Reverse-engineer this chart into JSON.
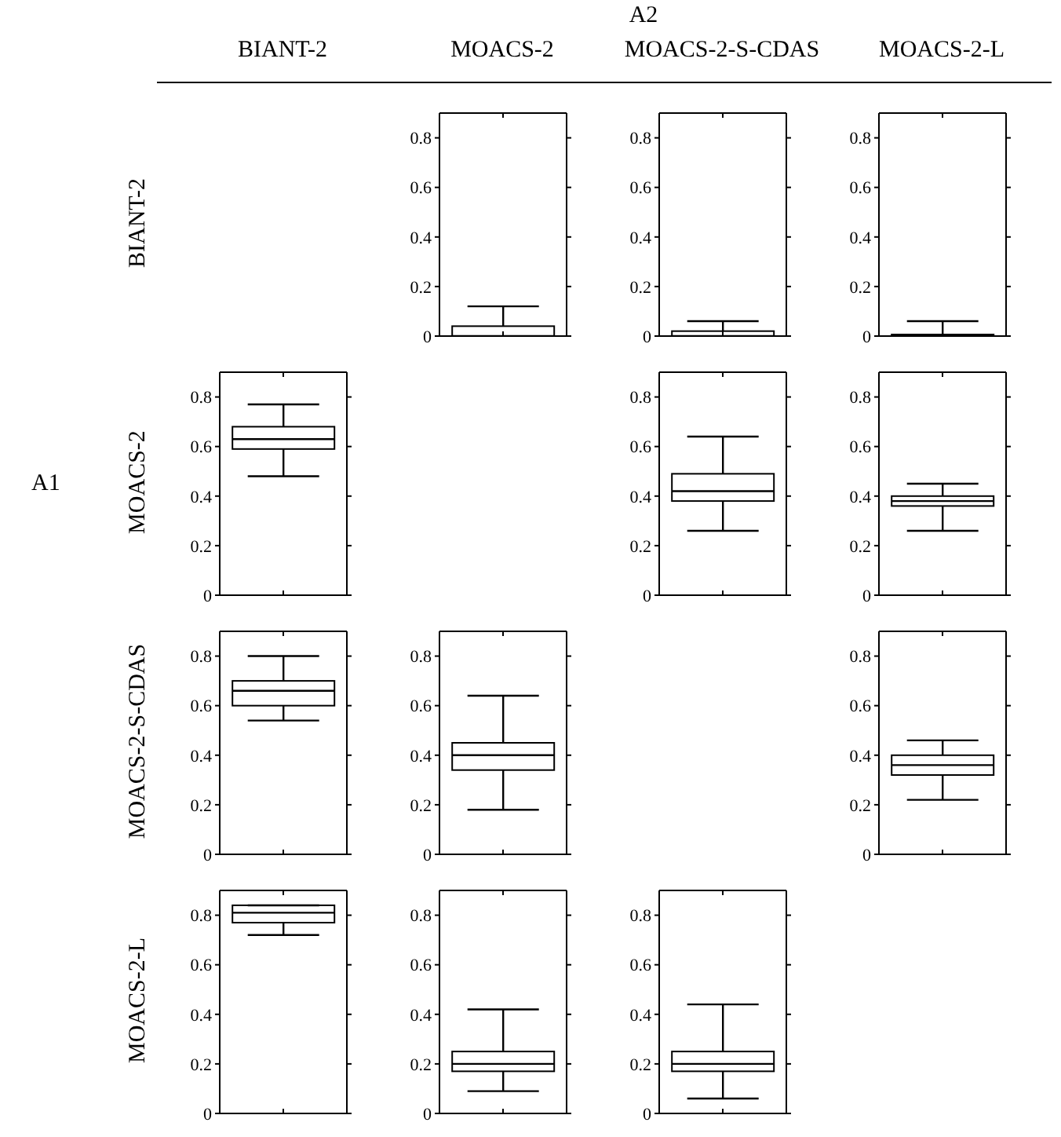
{
  "chart_data": [
    {
      "type": "other",
      "title": "A2",
      "ylabel": "A1"
    },
    {
      "type": "box",
      "title": "MOACS-2",
      "ylabel": "BIANT-2",
      "categories": [
        null
      ],
      "color": "#000000",
      "ylim": [
        0,
        0.9
      ],
      "yticks": [
        0,
        0.2,
        0.4,
        0.6,
        0.8
      ],
      "tick_labels": "y",
      "boxes": [
        {
          "low": 0,
          "q1": 0,
          "median": 0,
          "q3": 0.04,
          "high": 0.12
        }
      ]
    },
    {
      "type": "box",
      "title": "MOACS-2-S-CDAS",
      "categories": [
        null
      ],
      "color": "#000000",
      "ylim": [
        0,
        0.9
      ],
      "yticks": [
        0,
        0.2,
        0.4,
        0.6,
        0.8
      ],
      "tick_labels": "y",
      "boxes": [
        {
          "low": 0,
          "q1": 0,
          "median": 0,
          "q3": 0.02,
          "high": 0.06
        }
      ]
    },
    {
      "type": "box",
      "title": "MOACS-2-L",
      "categories": [
        null
      ],
      "color": "#000000",
      "ylim": [
        0,
        0.9
      ],
      "yticks": [
        0,
        0.2,
        0.4,
        0.6,
        0.8
      ],
      "tick_labels": "y",
      "boxes": [
        {
          "low": 0,
          "q1": 0,
          "median": 0,
          "q3": 0,
          "high": 0.06
        }
      ]
    },
    {
      "type": "box",
      "title": "BIANT-2",
      "ylabel": "MOACS-2",
      "categories": [
        null
      ],
      "color": "#000000",
      "ylim": [
        0,
        0.9
      ],
      "yticks": [
        0,
        0.2,
        0.4,
        0.6,
        0.8
      ],
      "tick_labels": "y",
      "boxes": [
        {
          "low": 0.48,
          "q1": 0.59,
          "median": 0.63,
          "q3": 0.68,
          "high": 0.77
        }
      ]
    },
    {
      "type": "box",
      "categories": [
        null
      ],
      "color": "#000000",
      "ylim": [
        0,
        0.9
      ],
      "yticks": [
        0,
        0.2,
        0.4,
        0.6,
        0.8
      ],
      "tick_labels": "y",
      "boxes": [
        {
          "low": 0.26,
          "q1": 0.38,
          "median": 0.42,
          "q3": 0.49,
          "high": 0.64
        }
      ]
    },
    {
      "type": "box",
      "categories": [
        null
      ],
      "color": "#000000",
      "ylim": [
        0,
        0.9
      ],
      "yticks": [
        0,
        0.2,
        0.4,
        0.6,
        0.8
      ],
      "tick_labels": "y",
      "boxes": [
        {
          "low": 0.26,
          "q1": 0.36,
          "median": 0.38,
          "q3": 0.4,
          "high": 0.45
        }
      ]
    },
    {
      "type": "box",
      "ylabel": "MOACS-2-S-CDAS",
      "categories": [
        null
      ],
      "color": "#000000",
      "ylim": [
        0,
        0.9
      ],
      "yticks": [
        0,
        0.2,
        0.4,
        0.6,
        0.8
      ],
      "tick_labels": "y",
      "boxes": [
        {
          "low": 0.54,
          "q1": 0.6,
          "median": 0.66,
          "q3": 0.7,
          "high": 0.8
        }
      ]
    },
    {
      "type": "box",
      "categories": [
        null
      ],
      "color": "#000000",
      "ylim": [
        0,
        0.9
      ],
      "yticks": [
        0,
        0.2,
        0.4,
        0.6,
        0.8
      ],
      "tick_labels": "y",
      "boxes": [
        {
          "low": 0.18,
          "q1": 0.34,
          "median": 0.4,
          "q3": 0.45,
          "high": 0.64
        }
      ]
    },
    {
      "type": "box",
      "categories": [
        null
      ],
      "color": "#000000",
      "ylim": [
        0,
        0.9
      ],
      "yticks": [
        0,
        0.2,
        0.4,
        0.6,
        0.8
      ],
      "tick_labels": "y",
      "boxes": [
        {
          "low": 0.22,
          "q1": 0.32,
          "median": 0.36,
          "q3": 0.4,
          "high": 0.46
        }
      ]
    },
    {
      "type": "box",
      "ylabel": "MOACS-2-L",
      "categories": [
        null
      ],
      "color": "#000000",
      "ylim": [
        0,
        0.9
      ],
      "yticks": [
        0,
        0.2,
        0.4,
        0.6,
        0.8
      ],
      "tick_labels": "y",
      "boxes": [
        {
          "low": 0.72,
          "q1": 0.77,
          "median": 0.81,
          "q3": 0.84,
          "high": 0.84
        }
      ]
    },
    {
      "type": "box",
      "categories": [
        null
      ],
      "color": "#000000",
      "ylim": [
        0,
        0.9
      ],
      "yticks": [
        0,
        0.2,
        0.4,
        0.6,
        0.8
      ],
      "tick_labels": "y",
      "boxes": [
        {
          "low": 0.09,
          "q1": 0.17,
          "median": 0.2,
          "q3": 0.25,
          "high": 0.42
        }
      ]
    },
    {
      "type": "box",
      "categories": [
        null
      ],
      "color": "#000000",
      "ylim": [
        0,
        0.9
      ],
      "yticks": [
        0,
        0.2,
        0.4,
        0.6,
        0.8
      ],
      "tick_labels": "y",
      "boxes": [
        {
          "low": 0.06,
          "q1": 0.17,
          "median": 0.2,
          "q3": 0.25,
          "high": 0.44
        }
      ]
    }
  ]
}
